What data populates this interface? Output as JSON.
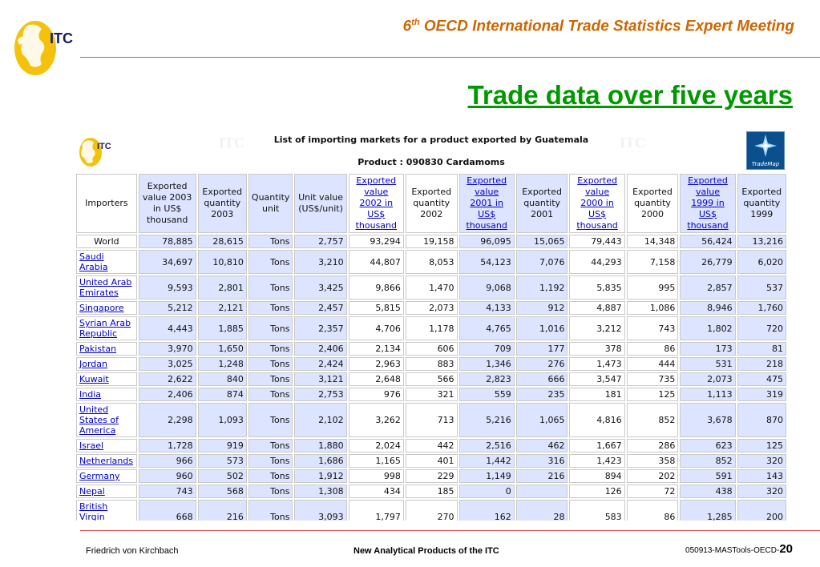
{
  "header": {
    "ordinal_number": "6",
    "ordinal_suffix": "th",
    "meeting_title": "OECD International Trade Statistics Expert Meeting",
    "logo_text": "ITC"
  },
  "slide_title": "Trade data over five years",
  "embedded": {
    "logo_text": "ITC",
    "heading": "List of importing markets for a product exported by Guatemala",
    "product": "Product : 090830 Cardamoms",
    "watermark": "ITC",
    "trademap_label": "TradeMap"
  },
  "table": {
    "columns": [
      {
        "label": "Importers",
        "link": false,
        "shade": "w"
      },
      {
        "label": "Exported value 2003 in US$ thousand",
        "link": false,
        "shade": "b"
      },
      {
        "label": "Exported quantity 2003",
        "link": false,
        "shade": "b"
      },
      {
        "label": "Quantity unit",
        "link": false,
        "shade": "b"
      },
      {
        "label": "Unit value (US$/unit)",
        "link": false,
        "shade": "b"
      },
      {
        "label": "Exported value 2002 in US$ thousand",
        "link": true,
        "shade": "w"
      },
      {
        "label": "Exported quantity 2002",
        "link": false,
        "shade": "w"
      },
      {
        "label": "Exported value 2001 in US$ thousand",
        "link": true,
        "shade": "b"
      },
      {
        "label": "Exported quantity 2001",
        "link": false,
        "shade": "b"
      },
      {
        "label": "Exported value 2000 in US$ thousand",
        "link": true,
        "shade": "w"
      },
      {
        "label": "Exported quantity 2000",
        "link": false,
        "shade": "w"
      },
      {
        "label": "Exported value 1999 in US$ thousand",
        "link": true,
        "shade": "b"
      },
      {
        "label": "Exported quantity 1999",
        "link": false,
        "shade": "b"
      }
    ],
    "rows": [
      {
        "importer": "World",
        "link": false,
        "values": [
          "78,885",
          "28,615",
          "Tons",
          "2,757",
          "93,294",
          "19,158",
          "96,095",
          "15,065",
          "79,443",
          "14,348",
          "56,424",
          "13,216"
        ]
      },
      {
        "importer": "Saudi Arabia",
        "link": true,
        "values": [
          "34,697",
          "10,810",
          "Tons",
          "3,210",
          "44,807",
          "8,053",
          "54,123",
          "7,076",
          "44,293",
          "7,158",
          "26,779",
          "6,020"
        ]
      },
      {
        "importer": "United Arab Emirates",
        "link": true,
        "values": [
          "9,593",
          "2,801",
          "Tons",
          "3,425",
          "9,866",
          "1,470",
          "9,068",
          "1,192",
          "5,835",
          "995",
          "2,857",
          "537"
        ]
      },
      {
        "importer": "Singapore",
        "link": true,
        "values": [
          "5,212",
          "2,121",
          "Tons",
          "2,457",
          "5,815",
          "2,073",
          "4,133",
          "912",
          "4,887",
          "1,086",
          "8,946",
          "1,760"
        ]
      },
      {
        "importer": "Syrian Arab Republic",
        "link": true,
        "values": [
          "4,443",
          "1,885",
          "Tons",
          "2,357",
          "4,706",
          "1,178",
          "4,765",
          "1,016",
          "3,212",
          "743",
          "1,802",
          "720"
        ]
      },
      {
        "importer": "Pakistan",
        "link": true,
        "values": [
          "3,970",
          "1,650",
          "Tons",
          "2,406",
          "2,134",
          "606",
          "709",
          "177",
          "378",
          "86",
          "173",
          "81"
        ]
      },
      {
        "importer": "Jordan",
        "link": true,
        "values": [
          "3,025",
          "1,248",
          "Tons",
          "2,424",
          "2,963",
          "883",
          "1,346",
          "276",
          "1,473",
          "444",
          "531",
          "218"
        ]
      },
      {
        "importer": "Kuwait",
        "link": true,
        "values": [
          "2,622",
          "840",
          "Tons",
          "3,121",
          "2,648",
          "566",
          "2,823",
          "666",
          "3,547",
          "735",
          "2,073",
          "475"
        ]
      },
      {
        "importer": "India",
        "link": true,
        "values": [
          "2,406",
          "874",
          "Tons",
          "2,753",
          "976",
          "321",
          "559",
          "235",
          "181",
          "125",
          "1,113",
          "319"
        ]
      },
      {
        "importer": "United States of America",
        "link": true,
        "values": [
          "2,298",
          "1,093",
          "Tons",
          "2,102",
          "3,262",
          "713",
          "5,216",
          "1,065",
          "4,816",
          "852",
          "3,678",
          "870"
        ]
      },
      {
        "importer": "Israel",
        "link": true,
        "values": [
          "1,728",
          "919",
          "Tons",
          "1,880",
          "2,024",
          "442",
          "2,516",
          "462",
          "1,667",
          "286",
          "623",
          "125"
        ]
      },
      {
        "importer": "Netherlands",
        "link": true,
        "values": [
          "966",
          "573",
          "Tons",
          "1,686",
          "1,165",
          "401",
          "1,442",
          "316",
          "1,423",
          "358",
          "852",
          "320"
        ]
      },
      {
        "importer": "Germany",
        "link": true,
        "values": [
          "960",
          "502",
          "Tons",
          "1,912",
          "998",
          "229",
          "1,149",
          "216",
          "894",
          "202",
          "591",
          "143"
        ]
      },
      {
        "importer": "Nepal",
        "link": true,
        "values": [
          "743",
          "568",
          "Tons",
          "1,308",
          "434",
          "185",
          "0",
          "",
          "126",
          "72",
          "438",
          "320"
        ]
      },
      {
        "importer": "British Virgin Islands",
        "link": true,
        "values": [
          "668",
          "216",
          "Tons",
          "3,093",
          "1,797",
          "270",
          "162",
          "28",
          "583",
          "86",
          "1,285",
          "200"
        ]
      }
    ]
  },
  "footer": {
    "author": "Friedrich von Kirchbach",
    "center": "New Analytical Products of the ITC",
    "code": "050913-MASTools-OECD-",
    "page": "20"
  },
  "colors": {
    "header_orange": "#cc6600",
    "title_green": "#009900",
    "rule_red": "#e05050",
    "shaded_column": "#dde4ff",
    "link_blue": "#0000cc"
  }
}
